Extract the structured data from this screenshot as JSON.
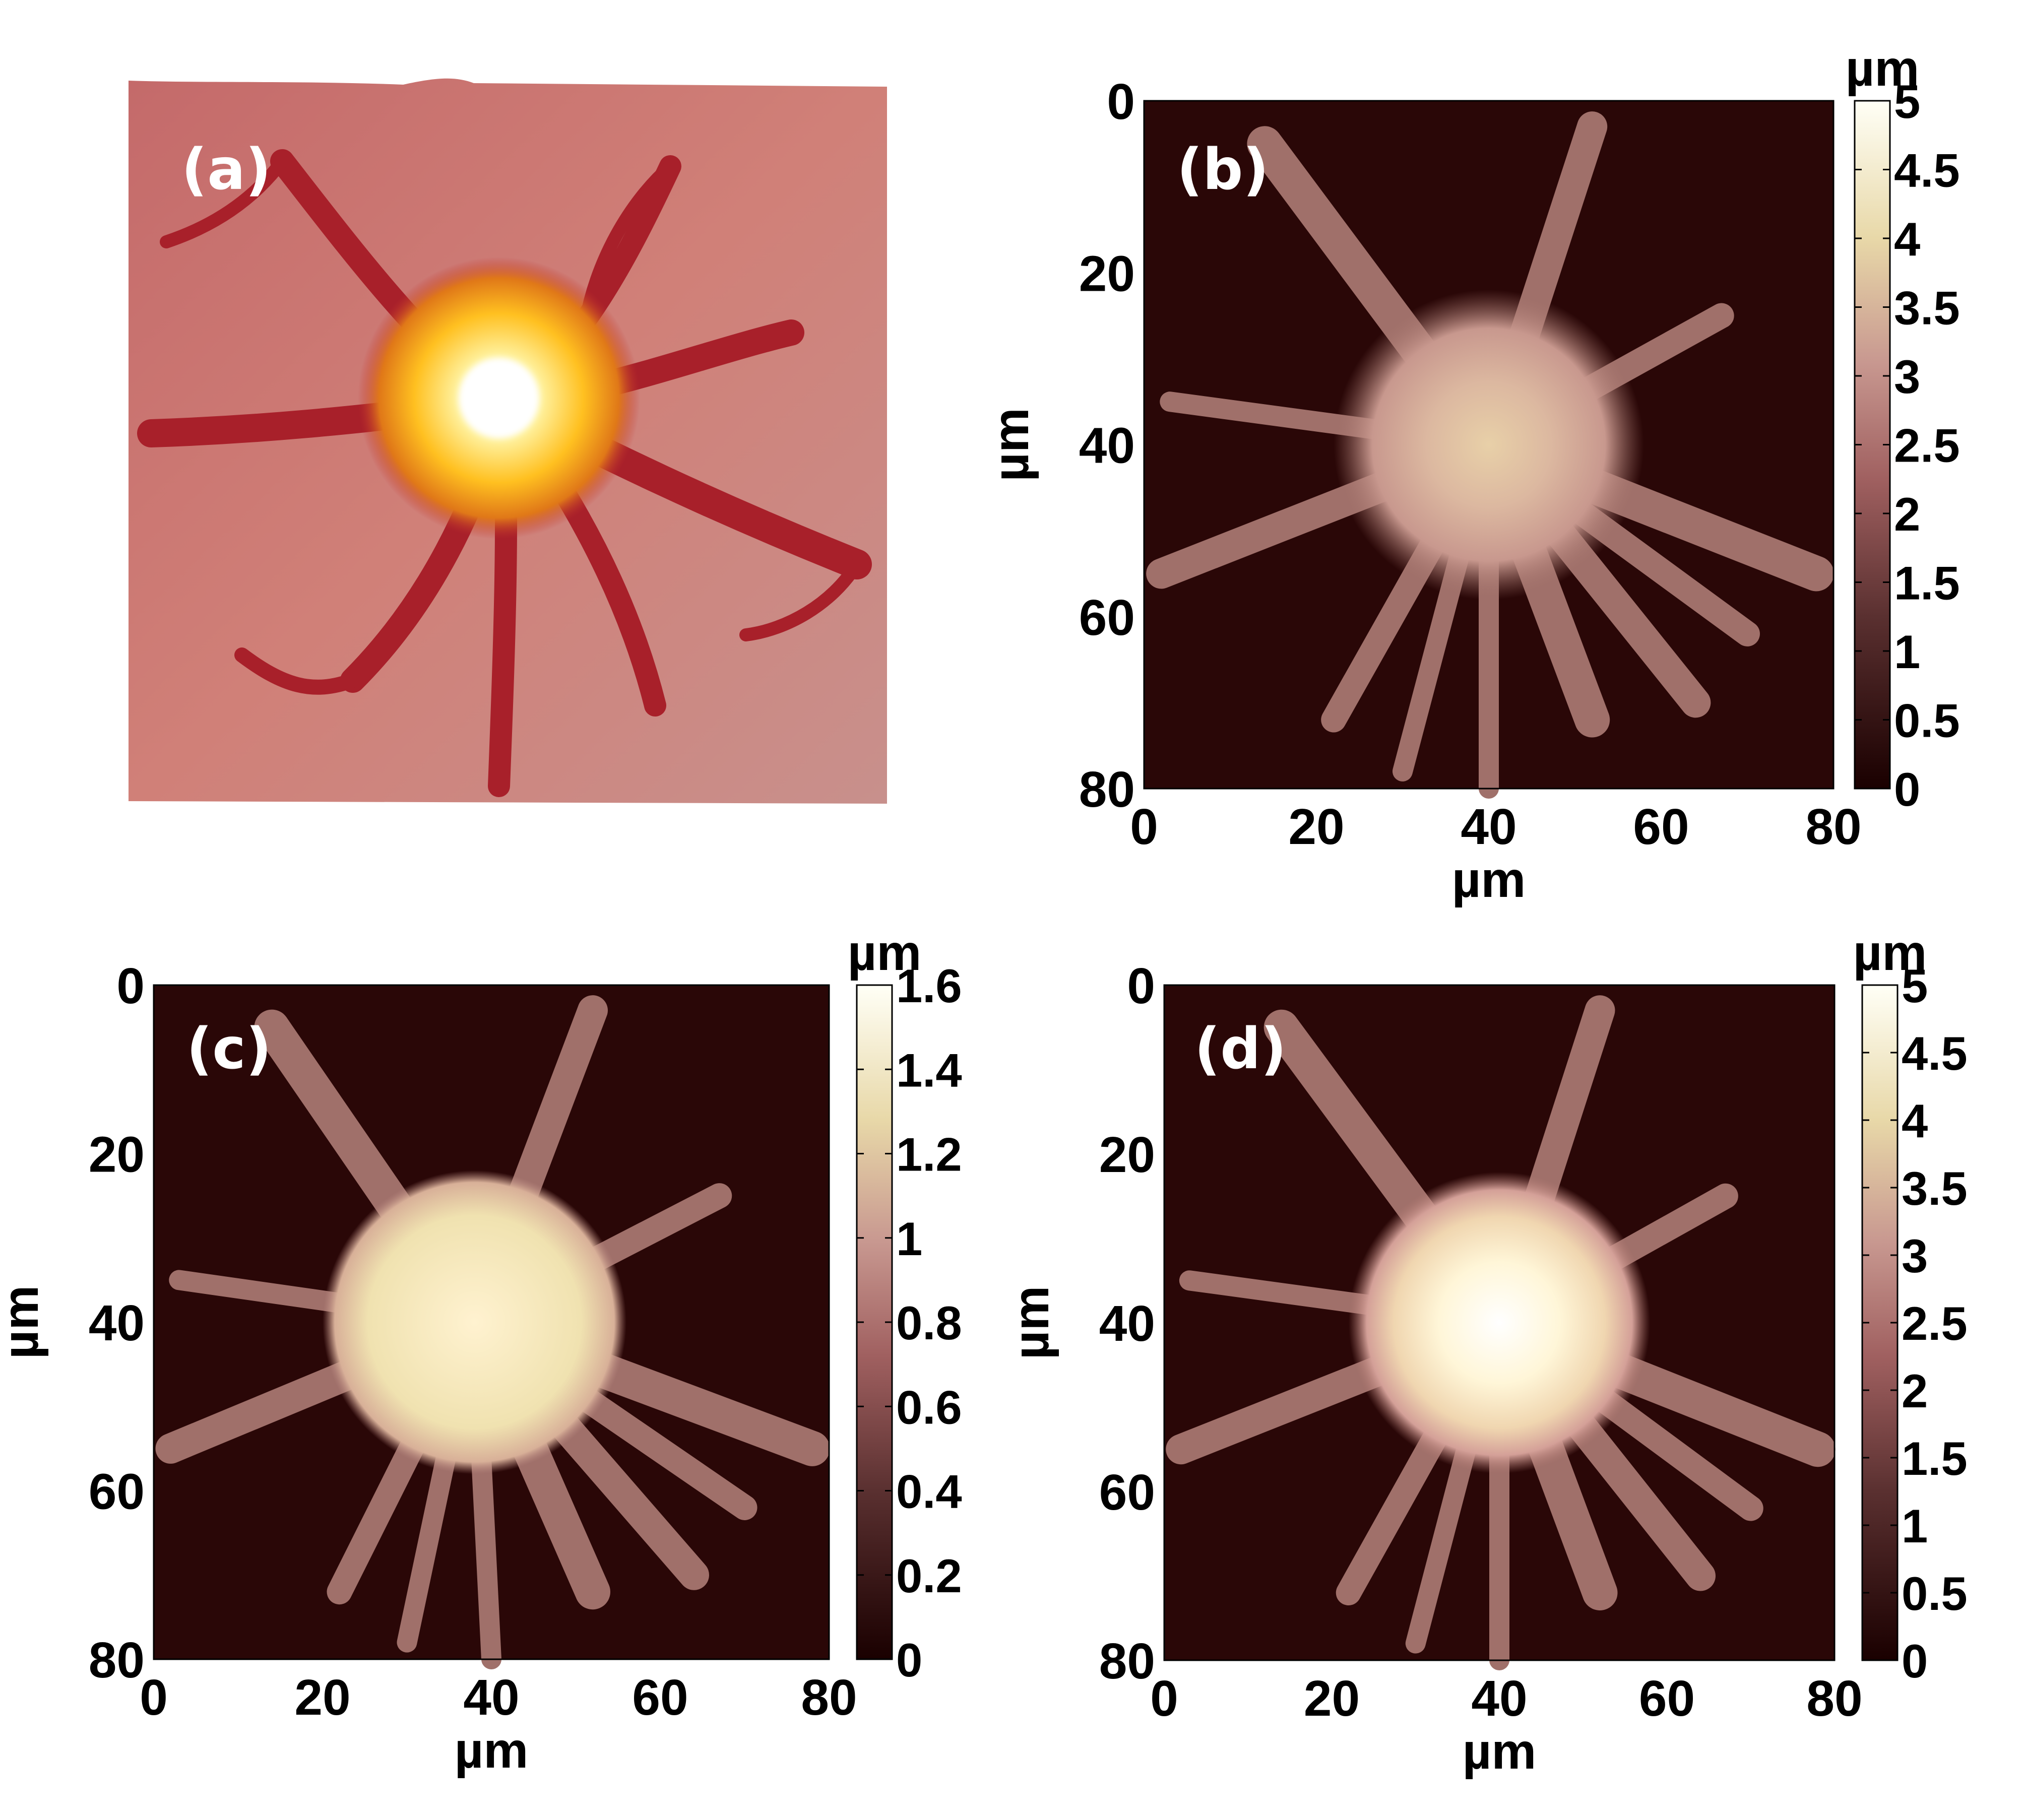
{
  "figure": {
    "panels": [
      {
        "id": "a",
        "label": "(a)"
      },
      {
        "id": "b",
        "label": "(b)"
      },
      {
        "id": "c",
        "label": "(c)"
      },
      {
        "id": "d",
        "label": "(d)"
      }
    ]
  },
  "colors": {
    "background": "#2a0707",
    "dendrite": "#a0706a",
    "soma_core": "#fff6dc",
    "surface_a": "#c8727a",
    "bright_a": "#ffe060"
  },
  "chart_data": [
    {
      "panel": "a",
      "type": "surface",
      "label": "(a)",
      "description_visible": "3D height rendering"
    },
    {
      "panel": "b",
      "type": "heatmap",
      "label": "(b)",
      "xlabel": "µm",
      "ylabel": "µm",
      "xlim": [
        0,
        80
      ],
      "ylim": [
        80,
        0
      ],
      "xticks": [
        0,
        20,
        40,
        60,
        80
      ],
      "yticks": [
        0,
        20,
        40,
        60,
        80
      ],
      "colorbar": {
        "label": "µm",
        "range": [
          0,
          5
        ],
        "ticks": [
          "0",
          "0.5",
          "1",
          "1.5",
          "2",
          "2.5",
          "3",
          "3.5",
          "4",
          "4.5",
          "5"
        ]
      },
      "soma_center": [
        40,
        40
      ],
      "soma_peak": 2.9
    },
    {
      "panel": "c",
      "type": "heatmap",
      "label": "(c)",
      "xlabel": "µm",
      "ylabel": "µm",
      "xlim": [
        0,
        80
      ],
      "ylim": [
        80,
        0
      ],
      "xticks": [
        0,
        20,
        40,
        60,
        80
      ],
      "yticks": [
        0,
        20,
        40,
        60,
        80
      ],
      "colorbar": {
        "label": "µm",
        "range": [
          0,
          1.6
        ],
        "ticks": [
          "0",
          "0.2",
          "0.4",
          "0.6",
          "0.8",
          "1",
          "1.2",
          "1.4",
          "1.6"
        ]
      },
      "soma_center": [
        38,
        40
      ],
      "soma_peak": 1.3
    },
    {
      "panel": "d",
      "type": "heatmap",
      "label": "(d)",
      "xlabel": "µm",
      "ylabel": "µm",
      "xlim": [
        0,
        80
      ],
      "ylim": [
        80,
        0
      ],
      "xticks": [
        0,
        20,
        40,
        60,
        80
      ],
      "yticks": [
        0,
        20,
        40,
        60,
        80
      ],
      "colorbar": {
        "label": "µm",
        "range": [
          0,
          5
        ],
        "ticks": [
          "0",
          "0.5",
          "1",
          "1.5",
          "2",
          "2.5",
          "3",
          "3.5",
          "4",
          "4.5",
          "5"
        ]
      },
      "soma_center": [
        40,
        40
      ],
      "soma_peak": 4.9
    }
  ]
}
